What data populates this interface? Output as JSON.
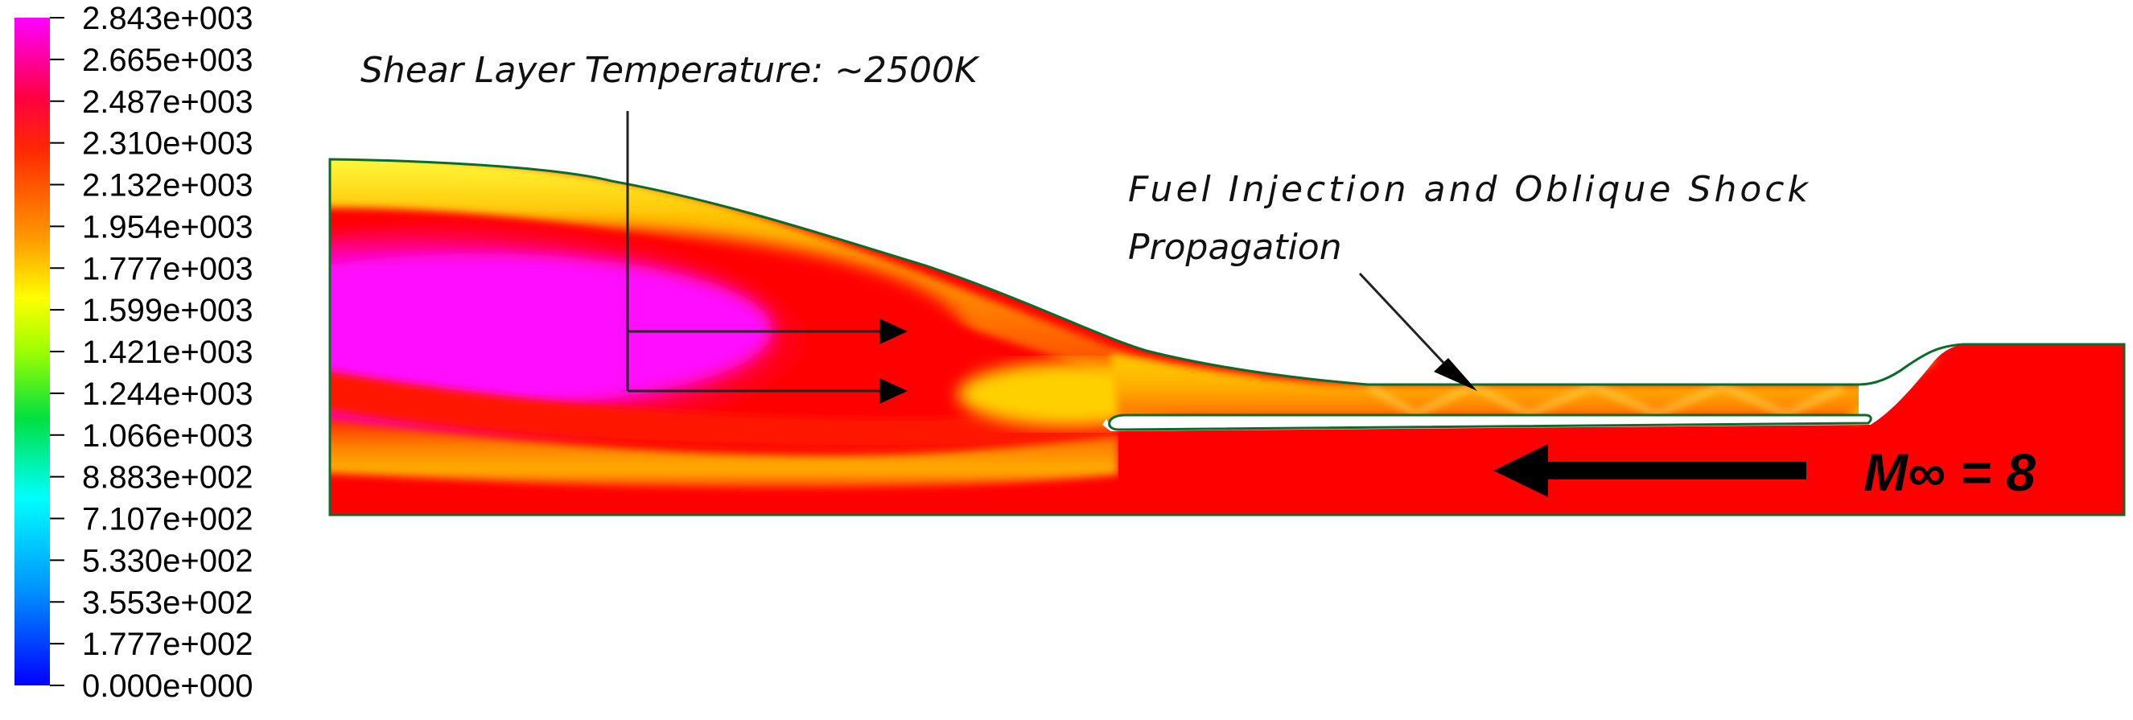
{
  "colorbar": {
    "colors": {
      "top": "#ff00ff",
      "upper": "#ff0000",
      "mid_upper": "#ffff00",
      "mid": "#00ff00",
      "mid_lower": "#00ffff",
      "bottom": "#0000ff"
    },
    "ticks": [
      "2.843e+003",
      "2.665e+003",
      "2.487e+003",
      "2.310e+003",
      "2.132e+003",
      "1.954e+003",
      "1.777e+003",
      "1.599e+003",
      "1.421e+003",
      "1.244e+003",
      "1.066e+003",
      "8.883e+002",
      "7.107e+002",
      "5.330e+002",
      "3.553e+002",
      "1.777e+002",
      "0.000e+000"
    ]
  },
  "annotations": {
    "shear_layer": "Shear Layer Temperature: ~2500K",
    "fuel_line1": "Fuel Injection and Oblique Shock",
    "fuel_line2": "Propagation",
    "mach": "M∞ = 8"
  },
  "field_colors": {
    "magenta": "#ff10ff",
    "red": "#ff0000",
    "orange": "#ff8a00",
    "yellow": "#ffe800",
    "wall": "#0a6b2a"
  }
}
